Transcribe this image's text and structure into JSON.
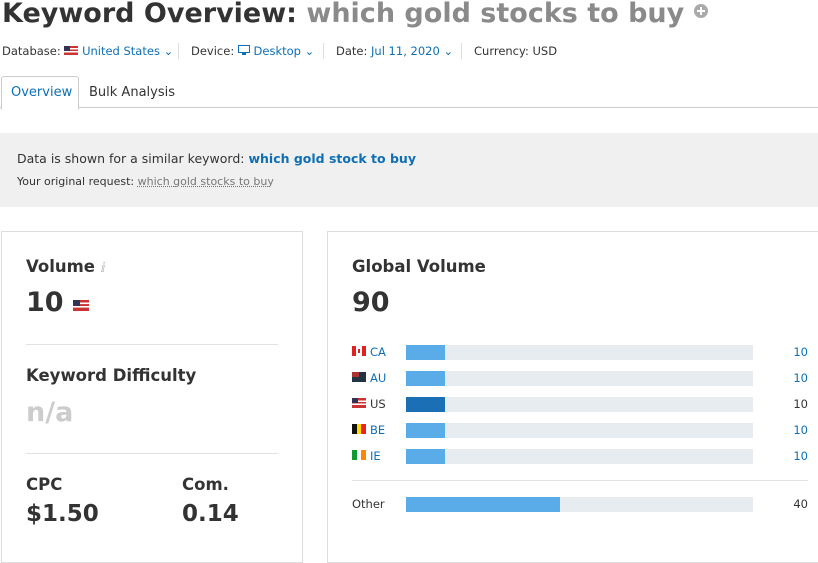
{
  "header": {
    "title": "Keyword Overview:",
    "keyword": "which gold stocks to buy"
  },
  "filters": [
    {
      "label": "Database:",
      "value": "United States"
    },
    {
      "label": "Device:",
      "value": "Desktop"
    },
    {
      "label": "Date:",
      "value": "Jul 11, 2020"
    },
    {
      "label": "Currency:",
      "value": "USD"
    }
  ],
  "tabs": [
    "Overview",
    "Bulk Analysis"
  ],
  "notice": {
    "text": "Data is shown for a similar keyword:",
    "keyword": "which gold stock to buy",
    "original_label": "Your original request:",
    "original": "which gold stocks to buy"
  },
  "metrics": {
    "volume": {
      "label": "Volume",
      "value": 10
    },
    "difficulty": {
      "label": "Keyword Difficulty",
      "value": "n/a"
    },
    "cpc": {
      "label": "CPC",
      "value": "$1.50"
    },
    "competition": {
      "label": "Com.",
      "value": 0.14
    }
  },
  "global_volume": {
    "label": "Global Volume",
    "value": 90,
    "countries": [
      {
        "code": "CA",
        "value": 10
      },
      {
        "code": "AU",
        "value": 10
      },
      {
        "code": "US",
        "value": 10
      },
      {
        "code": "BE",
        "value": 10
      },
      {
        "code": "IE",
        "value": 10
      }
    ],
    "other": {
      "label": "Other",
      "value": 40
    }
  }
}
